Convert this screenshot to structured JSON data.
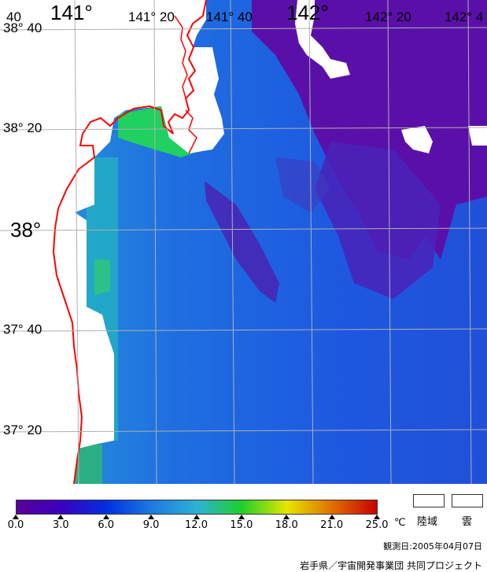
{
  "map": {
    "longitude_labels": [
      "40",
      "141°",
      "141° 20",
      "141° 40",
      "142°",
      "142° 20",
      "142° 4"
    ],
    "latitude_labels": [
      "38° 40",
      "38° 20",
      "38°",
      "37° 40",
      "37° 20"
    ]
  },
  "colorbar": {
    "ticks": [
      "0.0",
      "3.0",
      "6.0",
      "9.0",
      "12.0",
      "15.0",
      "18.0",
      "21.0",
      "25.0"
    ],
    "unit": "℃",
    "colors": [
      "#5a009a",
      "#3a00c0",
      "#0030e0",
      "#1e7ae0",
      "#2fb0d8",
      "#1ed02a",
      "#e6e600",
      "#e07000",
      "#c80000"
    ]
  },
  "legend": {
    "land_label": "陸域",
    "cloud_label": "雲"
  },
  "observation_date": "観測日:2005年04月07日",
  "credit": "岩手県／宇宙開発事業団 共同プロジェクト",
  "palette": {
    "coastline": "#ff0000",
    "grid": "#b0b0b0",
    "sea_deep": "#5a0fa6",
    "sea_mid": "#1f5fe0",
    "sea_shallow": "#2a9fd8"
  }
}
